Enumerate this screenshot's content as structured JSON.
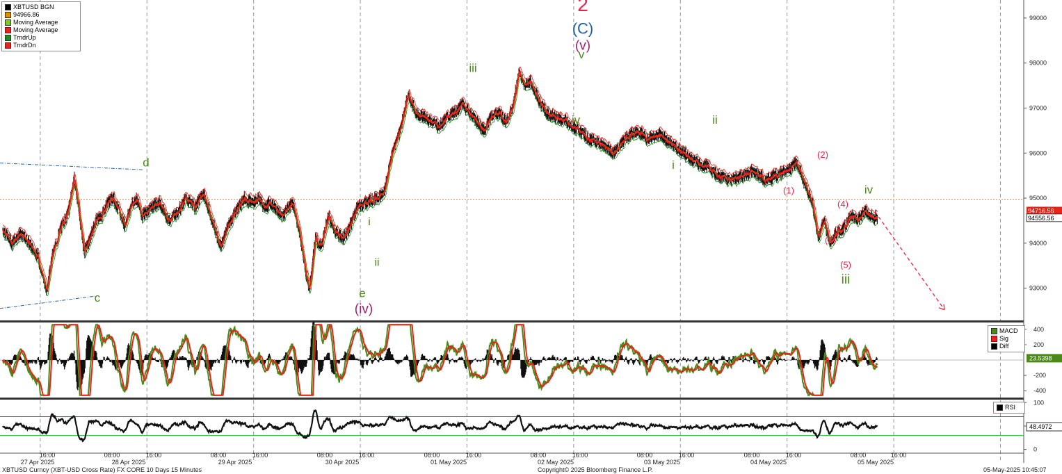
{
  "chart_data": [
    {
      "type": "candlestick",
      "ticker_label": "XBTUSD BGN",
      "last_price_label": "94966.86",
      "ylim": [
        92300,
        99400
      ],
      "yticks": [
        "93000",
        "94000",
        "95000",
        "96000",
        "97000",
        "98000",
        "99000"
      ],
      "horizontal_line": 94966.86,
      "legend": [
        {
          "name": "XBTUSD BGN",
          "color": "#000000"
        },
        {
          "name": "94966.86",
          "color": "#e08c00"
        },
        {
          "name": "Moving Average",
          "color": "#7ccc1e"
        },
        {
          "name": "Moving Average",
          "color": "#e8231a"
        },
        {
          "name": "TrndrUp",
          "color": "#1f8a1f"
        },
        {
          "name": "TrndrDn",
          "color": "#e8231a"
        }
      ],
      "price_path": [
        [
          0.0,
          94300
        ],
        [
          0.3,
          94000
        ],
        [
          0.55,
          94200
        ],
        [
          0.8,
          94100
        ],
        [
          1.0,
          93900
        ],
        [
          1.2,
          93700
        ],
        [
          1.4,
          93200
        ],
        [
          1.5,
          92950
        ],
        [
          1.7,
          93700
        ],
        [
          2.0,
          94350
        ],
        [
          2.25,
          94700
        ],
        [
          2.45,
          95450
        ],
        [
          2.6,
          94800
        ],
        [
          2.8,
          93800
        ],
        [
          3.0,
          94100
        ],
        [
          3.2,
          94500
        ],
        [
          3.4,
          94600
        ],
        [
          3.6,
          94900
        ],
        [
          3.8,
          95000
        ],
        [
          4.0,
          94700
        ],
        [
          4.2,
          94400
        ],
        [
          4.4,
          94800
        ],
        [
          4.6,
          95000
        ],
        [
          4.8,
          94600
        ],
        [
          5.1,
          94800
        ],
        [
          5.4,
          94900
        ],
        [
          5.7,
          94500
        ],
        [
          6.0,
          94700
        ],
        [
          6.3,
          95000
        ],
        [
          6.6,
          94800
        ],
        [
          6.9,
          95100
        ],
        [
          7.2,
          94500
        ],
        [
          7.5,
          93900
        ],
        [
          7.7,
          94300
        ],
        [
          8.0,
          94700
        ],
        [
          8.3,
          95000
        ],
        [
          8.6,
          94900
        ],
        [
          8.8,
          95000
        ],
        [
          9.0,
          94800
        ],
        [
          9.2,
          94900
        ],
        [
          9.6,
          94600
        ],
        [
          9.95,
          94900
        ],
        [
          10.2,
          94300
        ],
        [
          10.4,
          93400
        ],
        [
          10.55,
          93000
        ],
        [
          10.75,
          94100
        ],
        [
          10.95,
          93900
        ],
        [
          11.2,
          94600
        ],
        [
          11.4,
          94300
        ],
        [
          11.7,
          94100
        ],
        [
          11.95,
          94400
        ],
        [
          12.2,
          94800
        ],
        [
          12.5,
          94900
        ],
        [
          12.8,
          95000
        ],
        [
          13.1,
          95100
        ],
        [
          13.4,
          96000
        ],
        [
          13.7,
          96600
        ],
        [
          13.95,
          97300
        ],
        [
          14.2,
          96900
        ],
        [
          14.5,
          96800
        ],
        [
          14.75,
          96700
        ],
        [
          15.0,
          96600
        ],
        [
          15.3,
          96800
        ],
        [
          15.55,
          96900
        ],
        [
          15.8,
          97100
        ],
        [
          16.05,
          96900
        ],
        [
          16.3,
          96700
        ],
        [
          16.55,
          96500
        ],
        [
          16.8,
          96800
        ],
        [
          17.05,
          96900
        ],
        [
          17.3,
          96700
        ],
        [
          17.55,
          97000
        ],
        [
          17.75,
          97800
        ],
        [
          17.95,
          97500
        ],
        [
          18.15,
          97600
        ],
        [
          18.4,
          97200
        ],
        [
          18.7,
          96900
        ],
        [
          19.0,
          96800
        ],
        [
          19.4,
          96700
        ],
        [
          19.8,
          96500
        ],
        [
          20.2,
          96300
        ],
        [
          20.6,
          96200
        ],
        [
          21.0,
          96000
        ],
        [
          21.4,
          96300
        ],
        [
          21.8,
          96500
        ],
        [
          22.2,
          96300
        ],
        [
          22.6,
          96400
        ],
        [
          23.0,
          96200
        ],
        [
          23.4,
          96000
        ],
        [
          23.8,
          95800
        ],
        [
          24.2,
          95700
        ],
        [
          24.6,
          95500
        ],
        [
          25.0,
          95400
        ],
        [
          25.4,
          95500
        ],
        [
          25.8,
          95600
        ],
        [
          26.2,
          95400
        ],
        [
          26.6,
          95500
        ],
        [
          27.0,
          95600
        ],
        [
          27.3,
          95800
        ],
        [
          27.6,
          95300
        ],
        [
          27.85,
          94900
        ],
        [
          28.05,
          94100
        ],
        [
          28.25,
          94500
        ],
        [
          28.45,
          94000
        ],
        [
          28.65,
          94200
        ],
        [
          28.9,
          94300
        ],
        [
          29.15,
          94600
        ],
        [
          29.4,
          94500
        ],
        [
          29.65,
          94700
        ],
        [
          29.9,
          94600
        ],
        [
          30.1,
          94557
        ]
      ]
    },
    {
      "type": "line",
      "legend": [
        {
          "name": "MACD",
          "color": "#4b8a1a"
        },
        {
          "name": "Sig",
          "color": "#e8231a"
        },
        {
          "name": "Diff",
          "color": "#000000"
        }
      ],
      "ylim": [
        -480,
        480
      ],
      "yticks": [
        "400",
        "200",
        "-200",
        "-400"
      ],
      "last_value_label": "23.5398"
    },
    {
      "type": "line",
      "legend": [
        {
          "name": "RSI",
          "color": "#000000"
        }
      ],
      "ylim": [
        -5,
        105
      ],
      "yticks": [
        "100",
        "50",
        "0"
      ],
      "bands": [
        70,
        30
      ],
      "last_value_label": "48.4972"
    }
  ],
  "price_tags": {
    "upper": "94716.56",
    "lower": "94556.56"
  },
  "x_time_labels": [
    "16:00",
    "08:00",
    "16:00",
    "08:00",
    "16:00",
    "08:00",
    "16:00",
    "08:00",
    "16:00",
    "08:00",
    "16:00",
    "08:00",
    "16:00",
    "08:00",
    "16:00",
    "08:00",
    "16:00"
  ],
  "x_date_labels": [
    "27 Apr 2025",
    "28 Apr 2025",
    "29 Apr 2025",
    "30 Apr 2025",
    "01 May 2025",
    "02 May 2025",
    "03 May 2025",
    "04 May 2025",
    "05 May 2025"
  ],
  "wave_labels": [
    {
      "text": "2",
      "price": 99150,
      "color": "#e8234a"
    },
    {
      "text": "(C)",
      "price": 98650,
      "color": "#1f5fa0"
    },
    {
      "text": "(v)",
      "price": 98300,
      "color": "#a0206e"
    },
    {
      "text": "v",
      "price": 98100,
      "color": "#4b8a1a"
    },
    {
      "text": "iii",
      "price": 97800,
      "color": "#4b8a1a"
    },
    {
      "text": "iv",
      "price": 96650,
      "color": "#4b8a1a"
    },
    {
      "text": "ii",
      "price": 96650,
      "color": "#4b8a1a"
    },
    {
      "text": "i",
      "price": 95650,
      "color": "#4b8a1a"
    },
    {
      "text": "d",
      "price": 95700,
      "color": "#4b8a1a"
    },
    {
      "text": "c",
      "price": 92700,
      "color": "#4b8a1a"
    },
    {
      "text": "i",
      "price": 94400,
      "color": "#4b8a1a"
    },
    {
      "text": "ii",
      "price": 93500,
      "color": "#4b8a1a"
    },
    {
      "text": "e",
      "price": 92800,
      "color": "#4b8a1a"
    },
    {
      "text": "(iv)",
      "price": 92450,
      "color": "#a0206e"
    },
    {
      "text": "(2)",
      "price": 95900,
      "color": "#e8234a"
    },
    {
      "text": "(1)",
      "price": 95100,
      "color": "#e8234a"
    },
    {
      "text": "(4)",
      "price": 94800,
      "color": "#e8234a"
    },
    {
      "text": "(3)",
      "price": 94000,
      "color": "#e8234a"
    },
    {
      "text": "(5)",
      "price": 93450,
      "color": "#e8234a"
    },
    {
      "text": "iii",
      "price": 93100,
      "color": "#4b8a1a"
    },
    {
      "text": "iv",
      "price": 95100,
      "color": "#4b8a1a"
    }
  ],
  "footer": {
    "left": "XBTUSD Curncy (XBT-USD Cross Rate) FX CORE 10 Days 15 Minutes",
    "center": "Copyright© 2025 Bloomberg Finance L.P.",
    "right": "05-May-2025 10:45:07"
  }
}
